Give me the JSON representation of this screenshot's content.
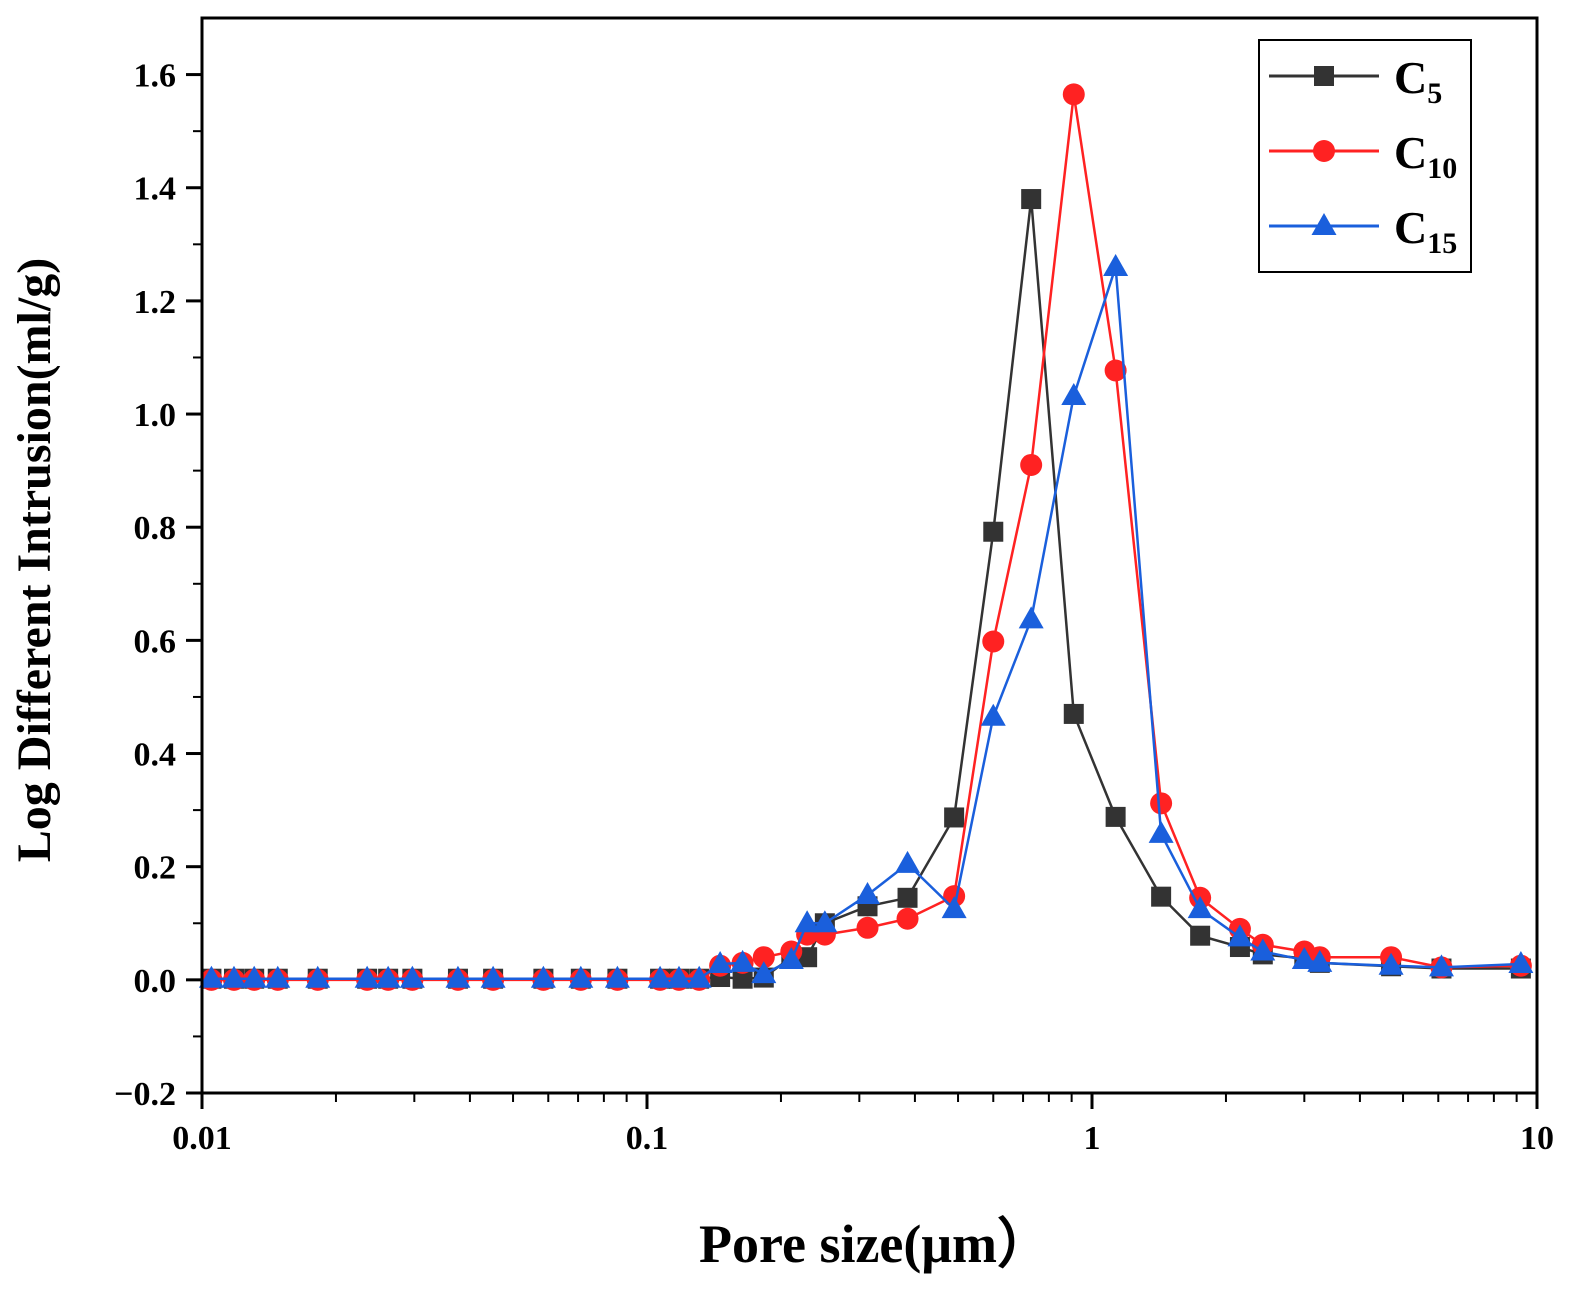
{
  "chart_data": {
    "type": "line",
    "xlabel": "Pore size(μm）",
    "ylabel": "Log Different Intrusion(ml/g)",
    "x_scale": "log",
    "xlim": [
      0.01,
      10
    ],
    "ylim": [
      -0.2,
      1.7
    ],
    "x_ticks": [
      {
        "value": 0.01,
        "label": "0.01"
      },
      {
        "value": 0.1,
        "label": "0.1"
      },
      {
        "value": 1,
        "label": "1"
      },
      {
        "value": 10,
        "label": "10"
      }
    ],
    "y_ticks": [
      {
        "value": -0.2,
        "label": "−0.2"
      },
      {
        "value": 0.0,
        "label": "0.0"
      },
      {
        "value": 0.2,
        "label": "0.2"
      },
      {
        "value": 0.4,
        "label": "0.4"
      },
      {
        "value": 0.6,
        "label": "0.6"
      },
      {
        "value": 0.8,
        "label": "0.8"
      },
      {
        "value": 1.0,
        "label": "1.0"
      },
      {
        "value": 1.2,
        "label": "1.2"
      },
      {
        "value": 1.4,
        "label": "1.4"
      },
      {
        "value": 1.6,
        "label": "1.6"
      }
    ],
    "grid": false,
    "legend_position": "top-right",
    "series": [
      {
        "name_main": "C",
        "name_sub": "5",
        "color": "#333333",
        "marker": "square",
        "x": [
          0.0105,
          0.0118,
          0.0131,
          0.0148,
          0.0182,
          0.0235,
          0.0262,
          0.0297,
          0.0376,
          0.0451,
          0.0585,
          0.071,
          0.0858,
          0.107,
          0.118,
          0.131,
          0.146,
          0.164,
          0.183,
          0.211,
          0.229,
          0.251,
          0.313,
          0.385,
          0.49,
          0.6,
          0.73,
          0.91,
          1.13,
          1.43,
          1.75,
          2.15,
          2.42,
          3.0,
          3.25,
          4.7,
          6.1,
          9.2
        ],
        "y": [
          0.002,
          0.002,
          0.002,
          0.002,
          0.002,
          0.002,
          0.002,
          0.002,
          0.002,
          0.002,
          0.002,
          0.002,
          0.002,
          0.002,
          0.002,
          0.002,
          0.005,
          0.002,
          0.004,
          0.04,
          0.04,
          0.1,
          0.13,
          0.145,
          0.287,
          0.792,
          1.38,
          0.47,
          0.288,
          0.147,
          0.078,
          0.058,
          0.045,
          0.038,
          0.03,
          0.024,
          0.02,
          0.02
        ]
      },
      {
        "name_main": "C",
        "name_sub": "10",
        "color": "#ff2222",
        "marker": "circle",
        "x": [
          0.0105,
          0.0118,
          0.0131,
          0.0148,
          0.0182,
          0.0235,
          0.0262,
          0.0297,
          0.0376,
          0.0451,
          0.0585,
          0.071,
          0.0858,
          0.107,
          0.118,
          0.131,
          0.146,
          0.164,
          0.183,
          0.211,
          0.229,
          0.251,
          0.313,
          0.385,
          0.49,
          0.6,
          0.73,
          0.91,
          1.13,
          1.43,
          1.75,
          2.15,
          2.42,
          3.0,
          3.25,
          4.7,
          6.1,
          9.2
        ],
        "y": [
          0.0,
          0.0,
          0.0,
          0.0,
          0.0,
          0.0,
          0.0,
          0.0,
          0.0,
          0.0,
          0.0,
          0.0,
          0.0,
          0.0,
          0.0,
          0.0,
          0.025,
          0.03,
          0.04,
          0.05,
          0.08,
          0.08,
          0.092,
          0.108,
          0.148,
          0.598,
          0.91,
          1.565,
          1.077,
          0.312,
          0.145,
          0.09,
          0.062,
          0.05,
          0.04,
          0.04,
          0.022,
          0.025
        ]
      },
      {
        "name_main": "C",
        "name_sub": "15",
        "color": "#1a5fdc",
        "marker": "triangle",
        "x": [
          0.0105,
          0.0118,
          0.0131,
          0.0148,
          0.0182,
          0.0235,
          0.0262,
          0.0297,
          0.0376,
          0.0451,
          0.0585,
          0.071,
          0.0858,
          0.107,
          0.118,
          0.131,
          0.146,
          0.164,
          0.183,
          0.211,
          0.229,
          0.251,
          0.313,
          0.385,
          0.49,
          0.6,
          0.73,
          0.91,
          1.13,
          1.43,
          1.75,
          2.15,
          2.42,
          3.0,
          3.25,
          4.7,
          6.1,
          9.2
        ],
        "y": [
          0.002,
          0.002,
          0.002,
          0.002,
          0.002,
          0.002,
          0.002,
          0.002,
          0.002,
          0.002,
          0.002,
          0.002,
          0.002,
          0.002,
          0.002,
          0.002,
          0.028,
          0.03,
          0.01,
          0.035,
          0.1,
          0.1,
          0.15,
          0.205,
          0.125,
          0.465,
          0.637,
          1.032,
          1.26,
          0.258,
          0.125,
          0.075,
          0.05,
          0.035,
          0.03,
          0.025,
          0.022,
          0.028
        ]
      }
    ]
  }
}
